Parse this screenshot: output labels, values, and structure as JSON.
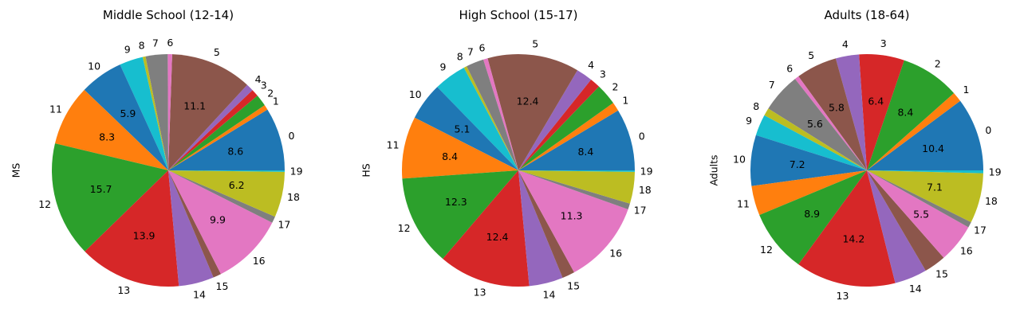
{
  "chart_data": [
    {
      "type": "pie",
      "title": "Middle School (12-14)",
      "ylabel": "MS",
      "categories": [
        "0",
        "1",
        "2",
        "3",
        "4",
        "5",
        "6",
        "7",
        "8",
        "9",
        "10",
        "11",
        "12",
        "13",
        "14",
        "15",
        "16",
        "17",
        "18",
        "19"
      ],
      "values": [
        8.6,
        0.7,
        1.6,
        1.0,
        1.0,
        11.1,
        0.6,
        3.0,
        0.4,
        3.2,
        5.9,
        8.3,
        15.7,
        13.9,
        4.8,
        1.1,
        9.9,
        0.9,
        6.2,
        0.2
      ],
      "pct_labels": [
        "8.6",
        "",
        "",
        "",
        "",
        "11.1",
        "",
        "",
        "",
        "",
        "5.9",
        "8.3",
        "15.7",
        "13.9",
        "",
        "",
        "9.9",
        "",
        "6.2",
        ""
      ],
      "start_angle_deg": 0,
      "direction": "counterclockwise"
    },
    {
      "type": "pie",
      "title": "High School (15-17)",
      "ylabel": "HS",
      "categories": [
        "0",
        "1",
        "2",
        "3",
        "4",
        "5",
        "6",
        "7",
        "8",
        "9",
        "10",
        "11",
        "12",
        "13",
        "14",
        "15",
        "16",
        "17",
        "18",
        "19"
      ],
      "values": [
        8.4,
        1.2,
        2.9,
        1.4,
        2.2,
        12.4,
        0.6,
        2.4,
        0.4,
        4.4,
        5.1,
        8.4,
        12.3,
        12.4,
        4.6,
        1.7,
        11.3,
        0.8,
        4.3,
        0.2
      ],
      "pct_labels": [
        "8.4",
        "",
        "",
        "",
        "",
        "12.4",
        "",
        "",
        "",
        "",
        "5.1",
        "8.4",
        "12.3",
        "12.4",
        "",
        "",
        "11.3",
        "",
        "",
        ""
      ],
      "start_angle_deg": 0,
      "direction": "counterclockwise"
    },
    {
      "type": "pie",
      "title": "Adults (18-64)",
      "ylabel": "Adults",
      "categories": [
        "0",
        "1",
        "2",
        "3",
        "4",
        "5",
        "6",
        "7",
        "8",
        "9",
        "10",
        "11",
        "12",
        "13",
        "14",
        "15",
        "16",
        "17",
        "18",
        "19"
      ],
      "values": [
        10.4,
        1.4,
        8.4,
        6.4,
        3.3,
        5.8,
        0.6,
        5.6,
        1.1,
        3.0,
        7.2,
        4.2,
        8.9,
        14.2,
        4.6,
        3.1,
        5.5,
        0.8,
        7.1,
        0.4
      ],
      "pct_labels": [
        "10.4",
        "",
        "8.4",
        "6.4",
        "",
        "5.8",
        "",
        "5.6",
        "",
        "",
        "7.2",
        "",
        "8.9",
        "14.2",
        "",
        "",
        "5.5",
        "",
        "7.1",
        ""
      ],
      "start_angle_deg": 0,
      "direction": "counterclockwise"
    }
  ],
  "colors": [
    "#1f77b4",
    "#ff7f0e",
    "#2ca02c",
    "#d62728",
    "#9467bd",
    "#8c564b",
    "#e377c2",
    "#7f7f7f",
    "#bcbd22",
    "#17becf"
  ]
}
